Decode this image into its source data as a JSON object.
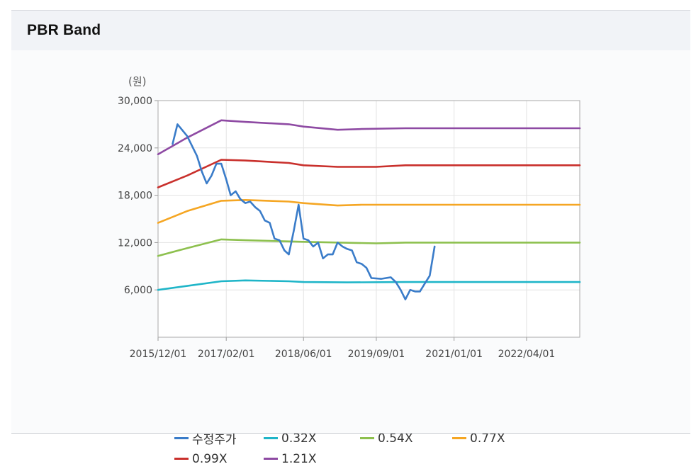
{
  "page_title": "PBR Band",
  "chart_data": {
    "type": "line",
    "title": "",
    "ylabel": "(원)",
    "xlabel": "",
    "ylim": [
      0,
      30000
    ],
    "xlim": [
      "2015/12/01",
      "2023/03/01"
    ],
    "yticks": [
      6000,
      12000,
      18000,
      24000,
      30000
    ],
    "ytick_labels": [
      "6,000",
      "12,000",
      "18,000",
      "24,000",
      "30,000"
    ],
    "xticks": [
      "2015/12/01",
      "2017/02/01",
      "2018/06/01",
      "2019/09/01",
      "2021/01/01",
      "2022/04/01"
    ],
    "grid": true,
    "legend_position": "bottom",
    "series": [
      {
        "name": "수정주가",
        "color": "#3a7cc9",
        "points": [
          [
            "2016/03/01",
            24500
          ],
          [
            "2016/04/01",
            27000
          ],
          [
            "2016/06/01",
            25500
          ],
          [
            "2016/08/01",
            23000
          ],
          [
            "2016/09/01",
            21000
          ],
          [
            "2016/10/01",
            19500
          ],
          [
            "2016/11/01",
            20500
          ],
          [
            "2016/12/01",
            22000
          ],
          [
            "2017/01/01",
            22000
          ],
          [
            "2017/02/01",
            20000
          ],
          [
            "2017/03/01",
            18000
          ],
          [
            "2017/04/01",
            18500
          ],
          [
            "2017/05/01",
            17500
          ],
          [
            "2017/06/01",
            17000
          ],
          [
            "2017/07/01",
            17200
          ],
          [
            "2017/08/01",
            16500
          ],
          [
            "2017/09/01",
            16000
          ],
          [
            "2017/10/01",
            14800
          ],
          [
            "2017/11/01",
            14500
          ],
          [
            "2017/12/01",
            12500
          ],
          [
            "2018/01/01",
            12300
          ],
          [
            "2018/02/01",
            11000
          ],
          [
            "2018/03/01",
            10500
          ],
          [
            "2018/04/01",
            13500
          ],
          [
            "2018/05/01",
            16800
          ],
          [
            "2018/06/01",
            12500
          ],
          [
            "2018/07/01",
            12300
          ],
          [
            "2018/08/01",
            11500
          ],
          [
            "2018/09/01",
            12000
          ],
          [
            "2018/10/01",
            10000
          ],
          [
            "2018/11/01",
            10500
          ],
          [
            "2018/12/01",
            10500
          ],
          [
            "2019/01/01",
            12000
          ],
          [
            "2019/02/01",
            11500
          ],
          [
            "2019/03/01",
            11200
          ],
          [
            "2019/04/01",
            11000
          ],
          [
            "2019/05/01",
            9500
          ],
          [
            "2019/06/01",
            9300
          ],
          [
            "2019/07/01",
            8800
          ],
          [
            "2019/08/01",
            7500
          ],
          [
            "2019/10/01",
            7400
          ],
          [
            "2019/12/01",
            7600
          ],
          [
            "2020/01/01",
            7000
          ],
          [
            "2020/02/01",
            6000
          ],
          [
            "2020/03/01",
            4800
          ],
          [
            "2020/04/01",
            6000
          ],
          [
            "2020/05/01",
            5800
          ],
          [
            "2020/06/01",
            5800
          ],
          [
            "2020/07/01",
            6800
          ],
          [
            "2020/08/01",
            7800
          ],
          [
            "2020/09/01",
            11500
          ]
        ]
      },
      {
        "name": "0.32X",
        "color": "#1fb5c8",
        "points": [
          [
            "2015/12/01",
            6000
          ],
          [
            "2016/06/01",
            6500
          ],
          [
            "2017/01/01",
            7100
          ],
          [
            "2017/06/01",
            7200
          ],
          [
            "2018/03/01",
            7100
          ],
          [
            "2018/06/01",
            7000
          ],
          [
            "2019/03/01",
            6950
          ],
          [
            "2020/03/01",
            7000
          ],
          [
            "2021/06/01",
            7000
          ],
          [
            "2023/03/01",
            7000
          ]
        ]
      },
      {
        "name": "0.54X",
        "color": "#8dc04e",
        "points": [
          [
            "2015/12/01",
            10300
          ],
          [
            "2016/06/01",
            11300
          ],
          [
            "2017/01/01",
            12400
          ],
          [
            "2017/06/01",
            12300
          ],
          [
            "2018/06/01",
            12100
          ],
          [
            "2019/09/01",
            11900
          ],
          [
            "2020/03/01",
            12000
          ],
          [
            "2023/03/01",
            12000
          ]
        ]
      },
      {
        "name": "0.77X",
        "color": "#f5a623",
        "points": [
          [
            "2015/12/01",
            14500
          ],
          [
            "2016/06/01",
            16000
          ],
          [
            "2017/01/01",
            17300
          ],
          [
            "2017/06/01",
            17400
          ],
          [
            "2018/03/01",
            17200
          ],
          [
            "2018/06/01",
            17000
          ],
          [
            "2019/01/01",
            16700
          ],
          [
            "2019/06/01",
            16800
          ],
          [
            "2020/03/01",
            16800
          ],
          [
            "2023/03/01",
            16800
          ]
        ]
      },
      {
        "name": "0.99X",
        "color": "#c9302c",
        "points": [
          [
            "2015/12/01",
            19000
          ],
          [
            "2016/06/01",
            20500
          ],
          [
            "2017/01/01",
            22500
          ],
          [
            "2017/06/01",
            22400
          ],
          [
            "2018/03/01",
            22100
          ],
          [
            "2018/06/01",
            21800
          ],
          [
            "2019/01/01",
            21600
          ],
          [
            "2019/09/01",
            21600
          ],
          [
            "2020/03/01",
            21800
          ],
          [
            "2023/03/01",
            21800
          ]
        ]
      },
      {
        "name": "1.21X",
        "color": "#8e4aa3",
        "points": [
          [
            "2015/12/01",
            23200
          ],
          [
            "2016/06/01",
            25300
          ],
          [
            "2017/01/01",
            27500
          ],
          [
            "2017/06/01",
            27300
          ],
          [
            "2018/03/01",
            27000
          ],
          [
            "2018/06/01",
            26700
          ],
          [
            "2019/01/01",
            26300
          ],
          [
            "2019/06/01",
            26400
          ],
          [
            "2020/03/01",
            26500
          ],
          [
            "2023/03/01",
            26500
          ]
        ]
      }
    ]
  }
}
